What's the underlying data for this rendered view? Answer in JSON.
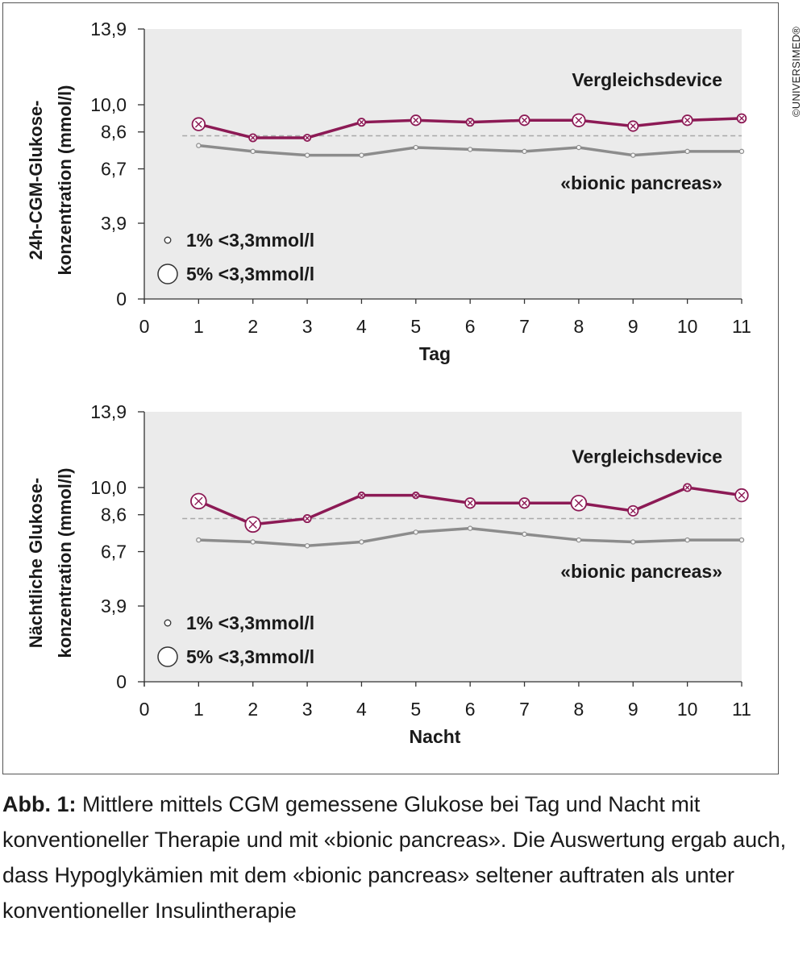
{
  "copyright": "©UNIVERSIMED®",
  "caption": {
    "lead": "Abb. 1:",
    "text": "Mittlere mittels CGM gemessene Glukose bei Tag und Nacht mit konventioneller Therapie und mit «bionic pancreas». Die Auswertung ergab auch, dass Hypoglykämien mit dem «bionic pancreas» seltener auftraten als unter konventioneller Insulintherapie"
  },
  "colors": {
    "plot_bg": "#ebebeb",
    "vergleich": "#8c1a55",
    "bionic": "#8c8c8c",
    "reference": "#a8a8a8"
  },
  "chart_data": [
    {
      "type": "line",
      "id": "tag",
      "xlabel": "Tag",
      "ylabel": [
        "24h-CGM-Glukose-",
        "konzentration (mmol/l)"
      ],
      "xticks": [
        0,
        1,
        2,
        3,
        4,
        5,
        6,
        7,
        8,
        9,
        10,
        11
      ],
      "ytick_labels": [
        "13,9",
        "10,0",
        "8,6",
        "6,7",
        "3,9",
        "0"
      ],
      "yticks": [
        13.9,
        10.0,
        8.6,
        6.7,
        3.9,
        0
      ],
      "xlim": [
        0,
        11
      ],
      "ylim": [
        0,
        13.9
      ],
      "grid": false,
      "reference_line": 8.4,
      "series": [
        {
          "name": "Vergleichsdevice",
          "x": [
            1,
            2,
            3,
            4,
            5,
            6,
            7,
            8,
            9,
            10,
            11
          ],
          "y": [
            9.0,
            8.3,
            8.3,
            9.1,
            9.2,
            9.1,
            9.2,
            9.2,
            8.9,
            9.2,
            9.3
          ],
          "hypo_1pct": [
            0.5,
            0.3,
            0.2,
            0.3,
            0.4,
            0.2,
            0.3,
            0.4,
            0.3,
            0.3,
            0.3
          ],
          "hypo_5pct": [
            3,
            1,
            0.7,
            1,
            2,
            1,
            2,
            3,
            2,
            2,
            1.5
          ]
        },
        {
          "name": "«bionic pancreas»",
          "x": [
            1,
            2,
            3,
            4,
            5,
            6,
            7,
            8,
            9,
            10,
            11
          ],
          "y": [
            7.9,
            7.6,
            7.4,
            7.4,
            7.8,
            7.7,
            7.6,
            7.8,
            7.4,
            7.6,
            7.6
          ]
        }
      ],
      "legend": {
        "position": "bottom-left",
        "items": [
          "1% <3,3mmol/l",
          "5% <3,3mmol/l"
        ]
      }
    },
    {
      "type": "line",
      "id": "nacht",
      "xlabel": "Nacht",
      "ylabel": [
        "Nächtliche Glukose-",
        "konzentration (mmol/l)"
      ],
      "xticks": [
        0,
        1,
        2,
        3,
        4,
        5,
        6,
        7,
        8,
        9,
        10,
        11
      ],
      "ytick_labels": [
        "13,9",
        "10,0",
        "8,6",
        "6,7",
        "3,9",
        "0"
      ],
      "yticks": [
        13.9,
        10.0,
        8.6,
        6.7,
        3.9,
        0
      ],
      "xlim": [
        0,
        11
      ],
      "ylim": [
        0,
        13.9
      ],
      "grid": false,
      "reference_line": 8.4,
      "series": [
        {
          "name": "Vergleichsdevice",
          "x": [
            1,
            2,
            3,
            4,
            5,
            6,
            7,
            8,
            9,
            10,
            11
          ],
          "y": [
            9.3,
            8.1,
            8.4,
            9.6,
            9.6,
            9.2,
            9.2,
            9.2,
            8.8,
            10.0,
            9.6
          ],
          "hypo_1pct": [
            0.3,
            0.4,
            0.3,
            0.2,
            0.2,
            0.2,
            0.3,
            0.3,
            0.3,
            0.2,
            0.3
          ],
          "hypo_5pct": [
            4,
            4,
            1,
            0.5,
            0.5,
            2,
            2,
            4,
            2,
            1,
            3
          ]
        },
        {
          "name": "«bionic pancreas»",
          "x": [
            1,
            2,
            3,
            4,
            5,
            6,
            7,
            8,
            9,
            10,
            11
          ],
          "y": [
            7.3,
            7.2,
            7.0,
            7.2,
            7.7,
            7.9,
            7.6,
            7.3,
            7.2,
            7.3,
            7.3
          ]
        }
      ],
      "legend": {
        "position": "bottom-left",
        "items": [
          "1% <3,3mmol/l",
          "5% <3,3mmol/l"
        ]
      }
    }
  ]
}
